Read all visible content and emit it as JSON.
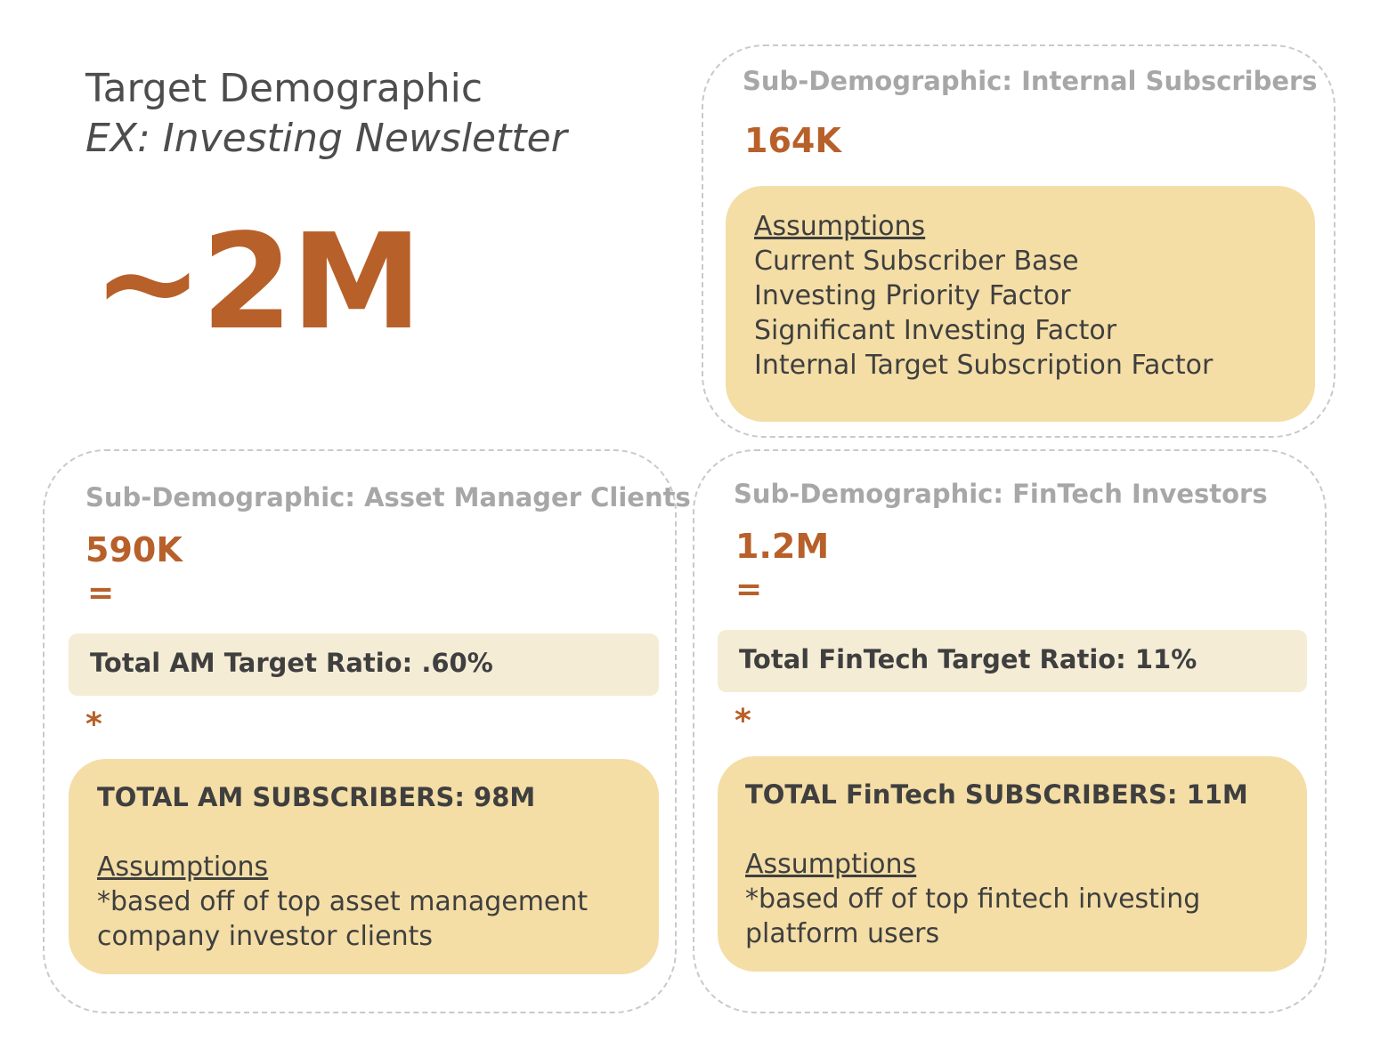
{
  "main": {
    "title": "Target Demographic",
    "subtitle": "EX: Investing Newsletter",
    "total": "~2M"
  },
  "internal": {
    "heading": "Sub-Demographic: Internal Subscribers",
    "value": "164K",
    "assumptions_label": "Assumptions",
    "assumptions": [
      "Current Subscriber Base",
      "Investing Priority Factor",
      "Significant Investing Factor",
      "Internal Target Subscription Factor"
    ]
  },
  "asset": {
    "heading": "Sub-Demographic: Asset Manager Clients",
    "value": "590K",
    "equals": "=",
    "ratio": "Total AM Target Ratio: .60%",
    "times": "*",
    "total_label": "TOTAL AM SUBSCRIBERS: 98M",
    "assumptions_label": "Assumptions",
    "assumptions": [
      "*based off of top asset management",
      "company investor clients"
    ]
  },
  "fintech": {
    "heading": "Sub-Demographic: FinTech Investors",
    "value": "1.2M",
    "equals": "=",
    "ratio": "Total FinTech Target Ratio: 11%",
    "times": "*",
    "total_label": "TOTAL FinTech SUBSCRIBERS: 11M",
    "assumptions_label": "Assumptions",
    "assumptions": [
      "*based off of top fintech investing",
      "platform users"
    ]
  },
  "colors": {
    "accent": "#b8602a",
    "heading_gray": "#a7a7a7",
    "assumption_fill": "#f4dea6",
    "ratio_fill": "#f5ecd5",
    "dashed_border": "#c9c9c9"
  }
}
